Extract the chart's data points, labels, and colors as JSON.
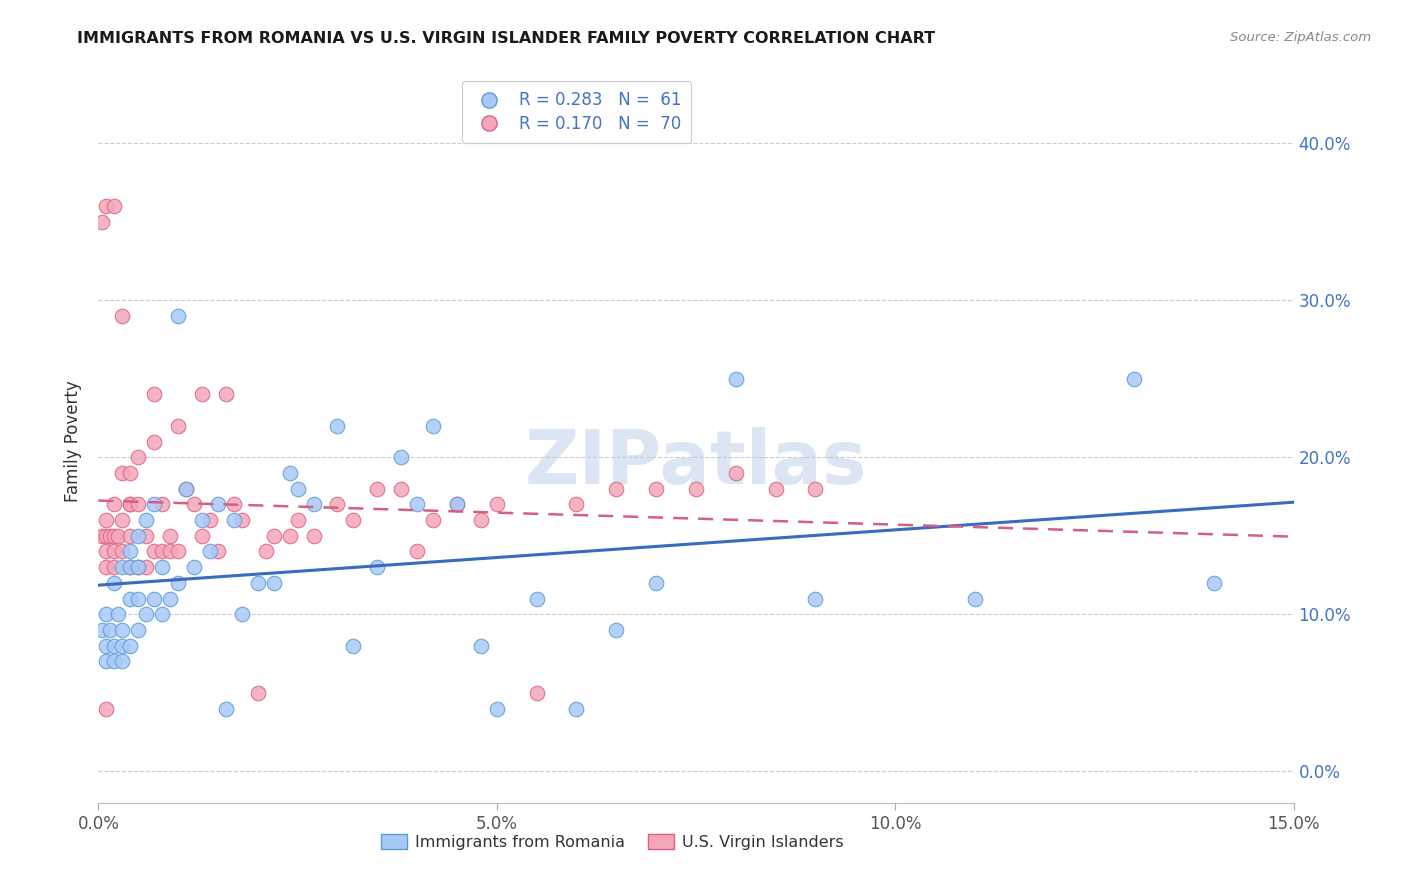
{
  "title": "IMMIGRANTS FROM ROMANIA VS U.S. VIRGIN ISLANDER FAMILY POVERTY CORRELATION CHART",
  "source": "Source: ZipAtlas.com",
  "ylabel": "Family Poverty",
  "legend_romania": "Immigrants from Romania",
  "legend_vi": "U.S. Virgin Islanders",
  "R_romania": 0.283,
  "N_romania": 61,
  "R_vi": 0.17,
  "N_vi": 70,
  "color_romania_fill": "#a8c8f8",
  "color_romania_edge": "#5b9bd5",
  "color_vi_fill": "#f4a7b9",
  "color_vi_edge": "#e06080",
  "color_romania_line": "#3a6bbf",
  "color_vi_line": "#d45f80",
  "xlim": [
    0.0,
    0.15
  ],
  "ylim": [
    -0.02,
    0.44
  ],
  "yticks": [
    0.0,
    0.1,
    0.2,
    0.3,
    0.4
  ],
  "xticks": [
    0.0,
    0.05,
    0.1,
    0.15
  ],
  "watermark": "ZIPatlas",
  "romania_x": [
    0.0005,
    0.001,
    0.001,
    0.001,
    0.0015,
    0.002,
    0.002,
    0.002,
    0.0025,
    0.003,
    0.003,
    0.003,
    0.003,
    0.004,
    0.004,
    0.004,
    0.004,
    0.005,
    0.005,
    0.005,
    0.005,
    0.006,
    0.006,
    0.007,
    0.007,
    0.008,
    0.008,
    0.009,
    0.01,
    0.01,
    0.011,
    0.012,
    0.013,
    0.014,
    0.015,
    0.016,
    0.017,
    0.018,
    0.02,
    0.022,
    0.024,
    0.025,
    0.027,
    0.03,
    0.032,
    0.035,
    0.038,
    0.04,
    0.042,
    0.045,
    0.048,
    0.05,
    0.055,
    0.06,
    0.065,
    0.07,
    0.08,
    0.09,
    0.11,
    0.13,
    0.14
  ],
  "romania_y": [
    0.09,
    0.07,
    0.08,
    0.1,
    0.09,
    0.08,
    0.07,
    0.12,
    0.1,
    0.09,
    0.08,
    0.07,
    0.13,
    0.14,
    0.13,
    0.11,
    0.08,
    0.15,
    0.13,
    0.11,
    0.09,
    0.16,
    0.1,
    0.17,
    0.11,
    0.1,
    0.13,
    0.11,
    0.29,
    0.12,
    0.18,
    0.13,
    0.16,
    0.14,
    0.17,
    0.04,
    0.16,
    0.1,
    0.12,
    0.12,
    0.19,
    0.18,
    0.17,
    0.22,
    0.08,
    0.13,
    0.2,
    0.17,
    0.22,
    0.17,
    0.08,
    0.04,
    0.11,
    0.04,
    0.09,
    0.12,
    0.25,
    0.11,
    0.11,
    0.25,
    0.12
  ],
  "vi_x": [
    0.0005,
    0.0005,
    0.001,
    0.001,
    0.001,
    0.001,
    0.001,
    0.0015,
    0.002,
    0.002,
    0.002,
    0.002,
    0.002,
    0.0025,
    0.003,
    0.003,
    0.003,
    0.003,
    0.004,
    0.004,
    0.004,
    0.004,
    0.004,
    0.005,
    0.005,
    0.005,
    0.006,
    0.006,
    0.007,
    0.007,
    0.007,
    0.008,
    0.008,
    0.009,
    0.009,
    0.01,
    0.01,
    0.011,
    0.012,
    0.013,
    0.013,
    0.014,
    0.015,
    0.016,
    0.017,
    0.018,
    0.02,
    0.021,
    0.022,
    0.024,
    0.025,
    0.027,
    0.03,
    0.032,
    0.035,
    0.038,
    0.04,
    0.042,
    0.045,
    0.048,
    0.05,
    0.055,
    0.06,
    0.065,
    0.07,
    0.075,
    0.08,
    0.085,
    0.09,
    0.001
  ],
  "vi_y": [
    0.15,
    0.35,
    0.15,
    0.14,
    0.36,
    0.16,
    0.13,
    0.15,
    0.14,
    0.36,
    0.17,
    0.15,
    0.13,
    0.15,
    0.29,
    0.19,
    0.16,
    0.14,
    0.17,
    0.19,
    0.15,
    0.13,
    0.17,
    0.2,
    0.17,
    0.13,
    0.15,
    0.13,
    0.21,
    0.14,
    0.24,
    0.17,
    0.14,
    0.15,
    0.14,
    0.22,
    0.14,
    0.18,
    0.17,
    0.24,
    0.15,
    0.16,
    0.14,
    0.24,
    0.17,
    0.16,
    0.05,
    0.14,
    0.15,
    0.15,
    0.16,
    0.15,
    0.17,
    0.16,
    0.18,
    0.18,
    0.14,
    0.16,
    0.17,
    0.16,
    0.17,
    0.05,
    0.17,
    0.18,
    0.18,
    0.18,
    0.19,
    0.18,
    0.18,
    0.04
  ]
}
